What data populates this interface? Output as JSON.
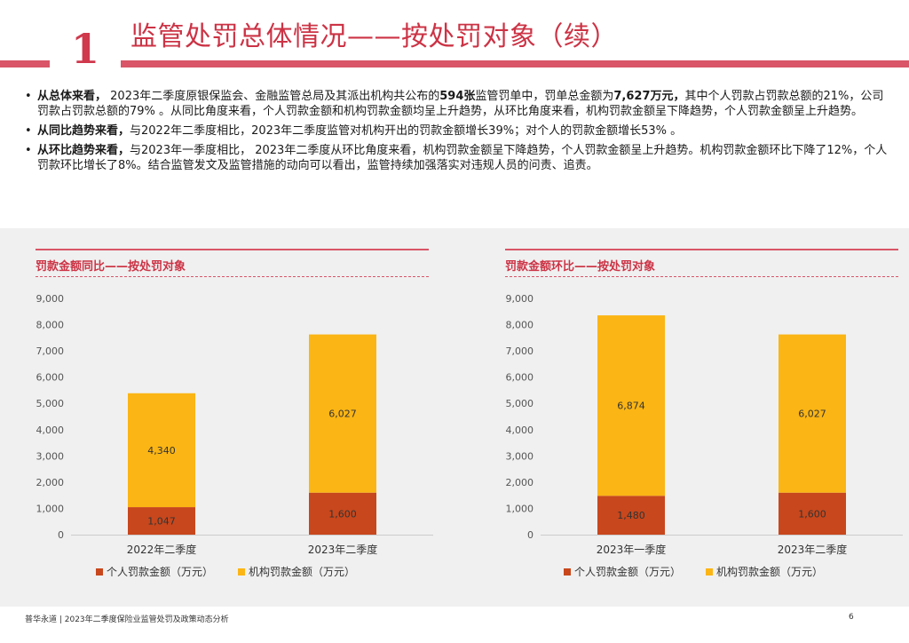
{
  "header": {
    "section_number": "1",
    "title": "监管处罚总体情况——按处罚对象（续）"
  },
  "bullets": [
    {
      "lead": "从总体来看，",
      "parts": [
        {
          "t": " 2023年二季度原银保监会、金融监管总局及其派出机构共公布的",
          "b": false
        },
        {
          "t": "594张",
          "b": true
        },
        {
          "t": "监管罚单中，罚单总金额为",
          "b": false
        },
        {
          "t": "7,627万元，",
          "b": true
        },
        {
          "t": "其中个人罚款占罚款总额的21%，公司罚款占罚款总额的79% 。从同比角度来看，个人罚款金额和机构罚款金额均呈上升趋势，从环比角度来看，机构罚款金额呈下降趋势，个人罚款金额呈上升趋势。",
          "b": false
        }
      ]
    },
    {
      "lead": "从同比趋势来看，",
      "parts": [
        {
          "t": "与2022年二季度相比，2023年二季度监管对机构开出的罚款金额增长39%；对个人的罚款金额增长53% 。",
          "b": false
        }
      ]
    },
    {
      "lead": "从环比趋势来看，",
      "parts": [
        {
          "t": "与2023年一季度相比， 2023年二季度从环比角度来看，机构罚款金额呈下降趋势，个人罚款金额呈上升趋势。机构罚款金额环比下降了12%，个人罚款环比增长了8%。结合监管发文及监管措施的动向可以看出，监管持续加强落实对违规人员的问责、追责。",
          "b": false
        }
      ]
    }
  ],
  "colors": {
    "personal": "#c8471c",
    "institution": "#fbb514",
    "accent": "#d95567"
  },
  "chart_data": [
    {
      "type": "bar",
      "stacked": true,
      "title": "罚款金额同比——按处罚对象",
      "categories": [
        "2022年二季度",
        "2023年二季度"
      ],
      "series": [
        {
          "name": "个人罚款金额（万元）",
          "values": [
            1047,
            1600
          ],
          "labels": [
            "1,047",
            "1,600"
          ]
        },
        {
          "name": "机构罚款金额（万元）",
          "values": [
            4340,
            6027
          ],
          "labels": [
            "4,340",
            "6,027"
          ]
        }
      ],
      "ylim": [
        0,
        9000
      ],
      "yticks": [
        "0",
        "1,000",
        "2,000",
        "3,000",
        "4,000",
        "5,000",
        "6,000",
        "7,000",
        "8,000",
        "9,000"
      ],
      "legend": "bottom",
      "grid": false
    },
    {
      "type": "bar",
      "stacked": true,
      "title": "罚款金额环比——按处罚对象",
      "categories": [
        "2023年一季度",
        "2023年二季度"
      ],
      "series": [
        {
          "name": "个人罚款金额（万元）",
          "values": [
            1480,
            1600
          ],
          "labels": [
            "1,480",
            "1,600"
          ]
        },
        {
          "name": "机构罚款金额（万元）",
          "values": [
            6874,
            6027
          ],
          "labels": [
            "6,874",
            "6,027"
          ]
        }
      ],
      "ylim": [
        0,
        9000
      ],
      "yticks": [
        "0",
        "1,000",
        "2,000",
        "3,000",
        "4,000",
        "5,000",
        "6,000",
        "7,000",
        "8,000",
        "9,000"
      ],
      "legend": "bottom",
      "grid": false
    }
  ],
  "footer": {
    "left": "普华永道 | 2023年二季度保险业监管处罚及政策动态分析",
    "page": "6"
  }
}
